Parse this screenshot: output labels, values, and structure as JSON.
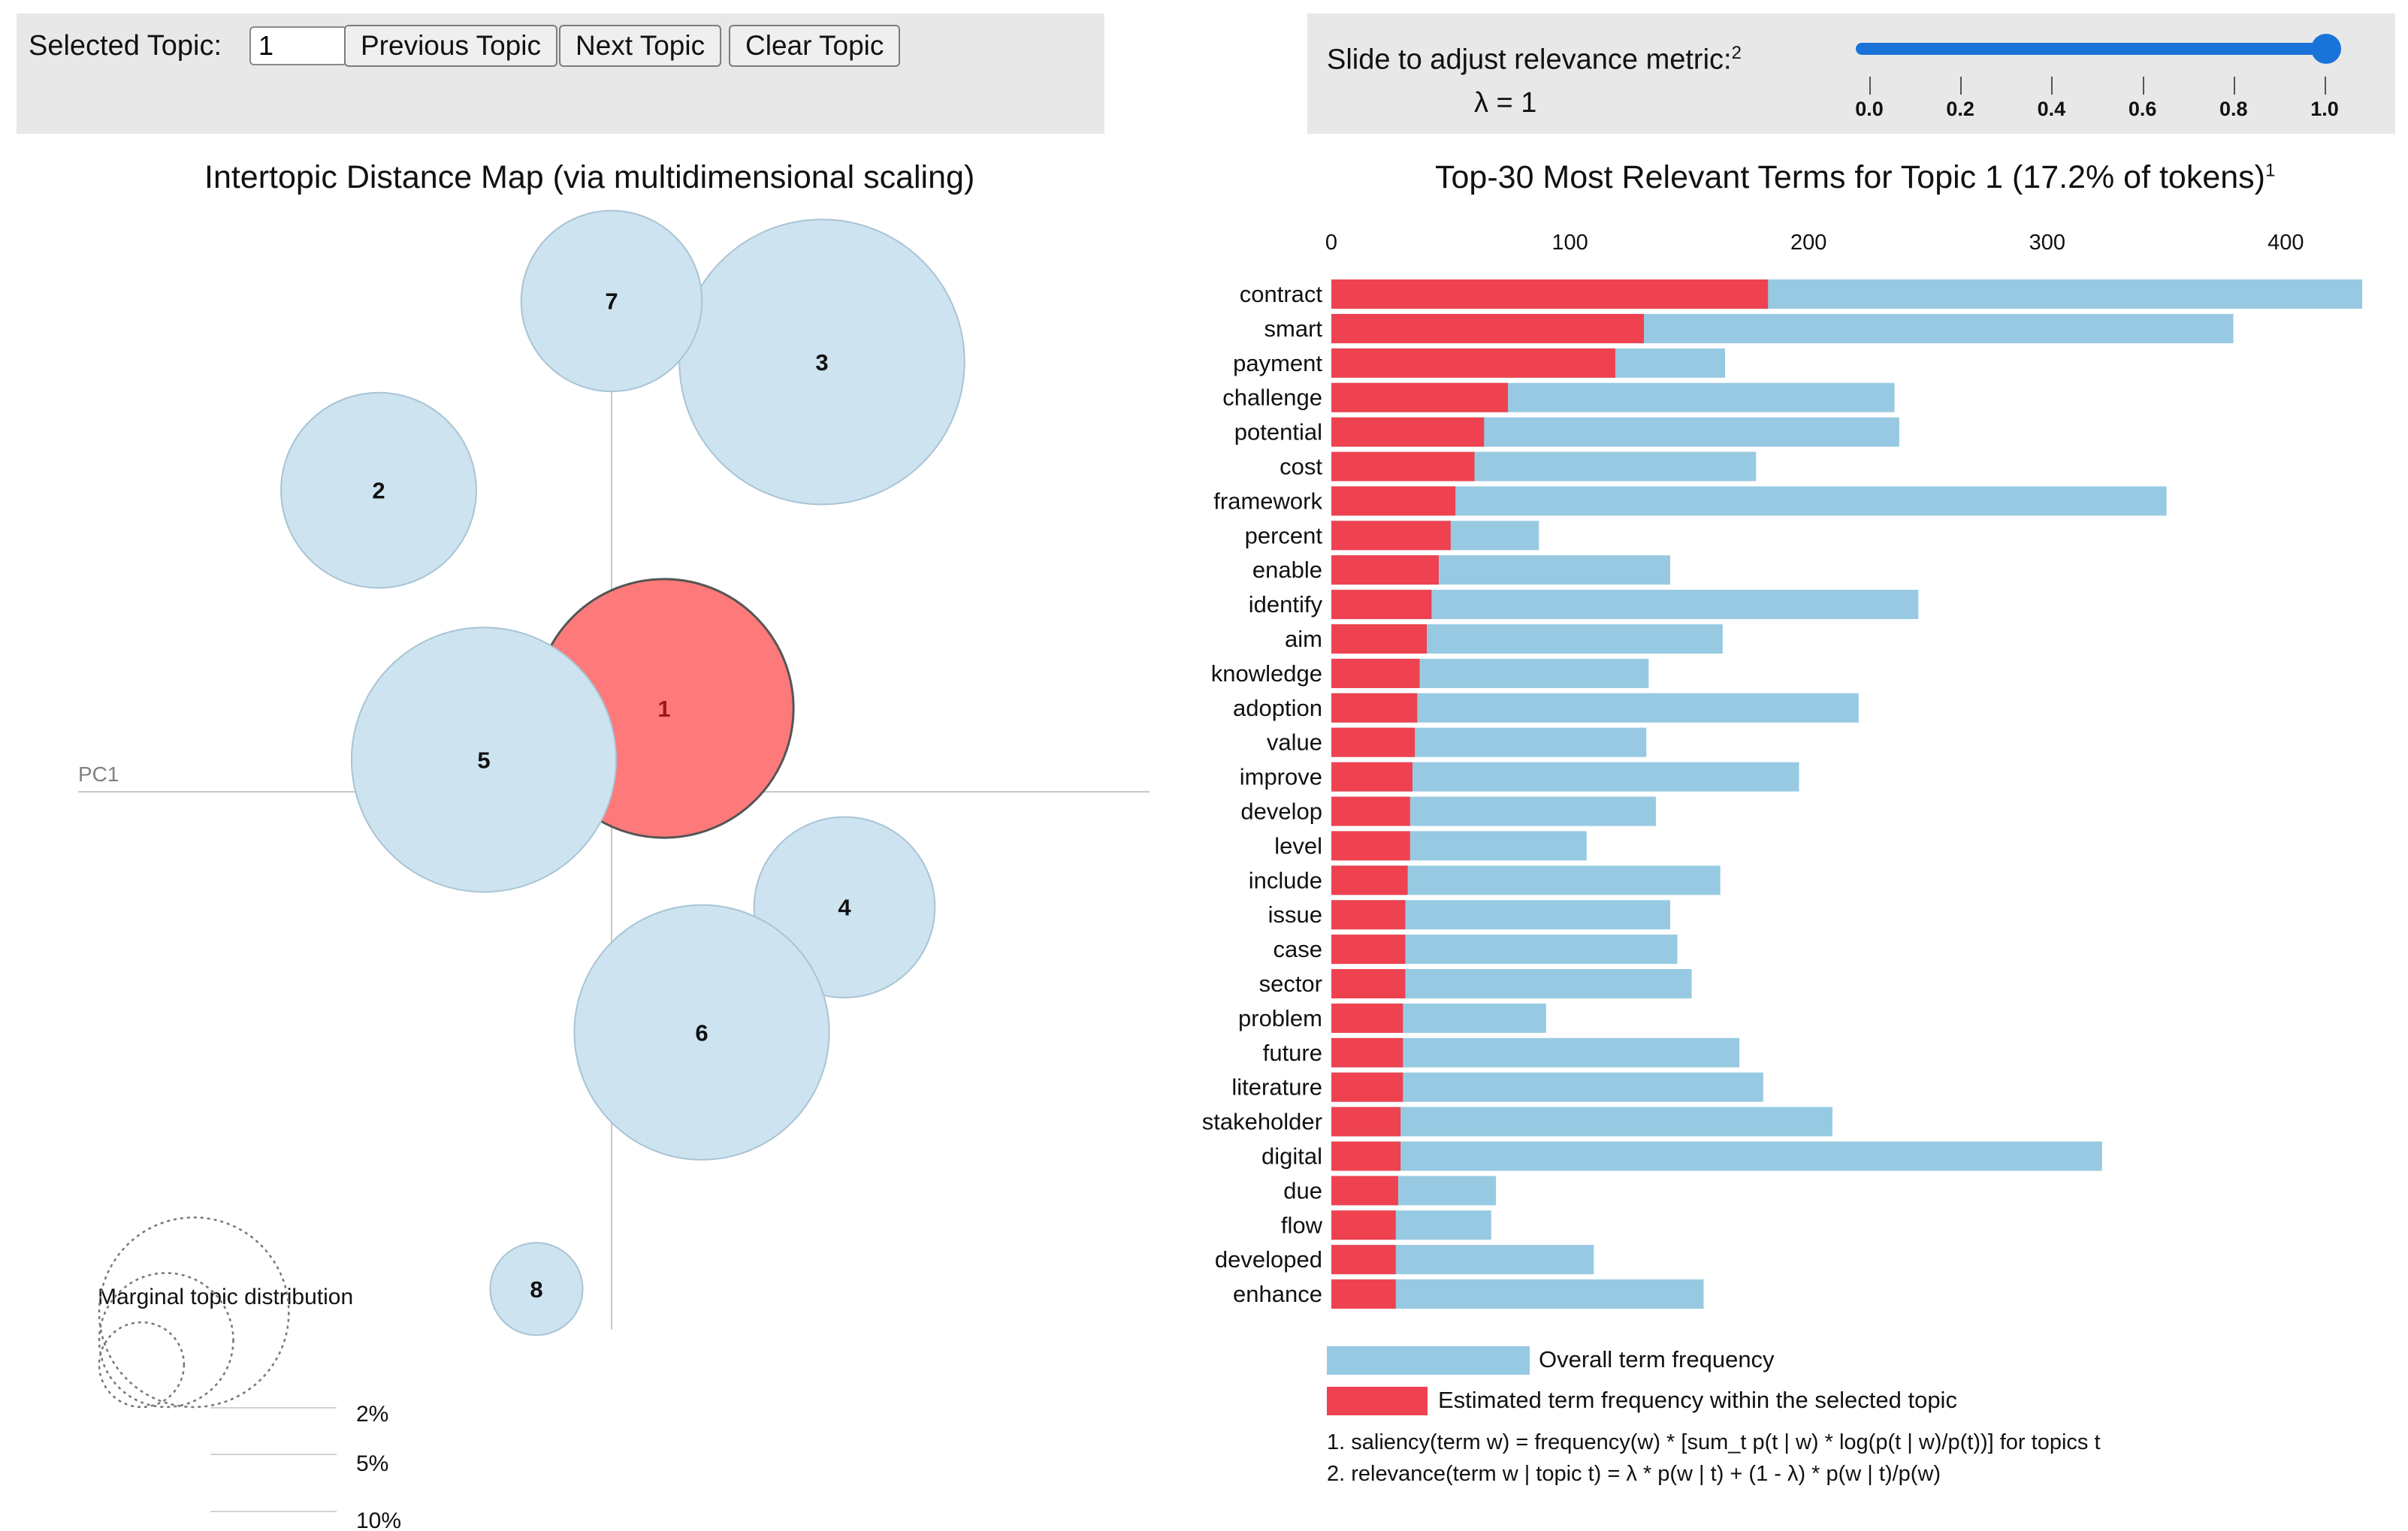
{
  "controls": {
    "selected_topic_label": "Selected Topic:",
    "selected_topic_value": "1",
    "previous_label": "Previous Topic",
    "next_label": "Next Topic",
    "clear_label": "Clear Topic",
    "slider_label": "Slide to adjust relevance metric:",
    "slider_footnote_mark": "2",
    "lambda_text": "λ = 1",
    "slider_value": 1.0,
    "slider_ticks": [
      "0.0",
      "0.2",
      "0.4",
      "0.6",
      "0.8",
      "1.0"
    ]
  },
  "colors": {
    "topic_fill": "#cde3f0",
    "selected_topic_fill": "#fe7a7a",
    "overall_bar": "#97cae2",
    "topic_bar": "#ee4250",
    "slider": "#1a73d8"
  },
  "chart_data": [
    {
      "type": "scatter",
      "title": "Intertopic Distance Map (via multidimensional scaling)",
      "xlabel": "PC1",
      "ylabel": "PC2",
      "selected_topic": "1",
      "topics": [
        {
          "label": "1",
          "x": 0.07,
          "y": 0.26,
          "size": 17.2
        },
        {
          "label": "2",
          "x": -0.31,
          "y": 0.94,
          "size": 9.8
        },
        {
          "label": "3",
          "x": 0.28,
          "y": 1.34,
          "size": 20.9
        },
        {
          "label": "4",
          "x": 0.31,
          "y": -0.36,
          "size": 8.4
        },
        {
          "label": "5",
          "x": -0.17,
          "y": 0.1,
          "size": 18.0
        },
        {
          "label": "6",
          "x": 0.12,
          "y": -0.75,
          "size": 16.7
        },
        {
          "label": "7",
          "x": 0.0,
          "y": 1.53,
          "size": 8.4
        },
        {
          "label": "8",
          "x": -0.1,
          "y": -1.55,
          "size": 2.2
        }
      ],
      "marginal_legend": {
        "title": "Marginal topic distribution",
        "labels": [
          "2%",
          "5%",
          "10%"
        ],
        "values": [
          2,
          5,
          10
        ]
      }
    },
    {
      "type": "bar",
      "title": "Top-30 Most Relevant Terms for Topic 1 (17.2% of tokens)",
      "title_footnote_mark": "1",
      "orientation": "horizontal",
      "xlim": [
        0,
        432
      ],
      "xticks": [
        0,
        100,
        200,
        300,
        400
      ],
      "categories": [
        "contract",
        "smart",
        "payment",
        "challenge",
        "potential",
        "cost",
        "framework",
        "percent",
        "enable",
        "identify",
        "aim",
        "knowledge",
        "adoption",
        "value",
        "improve",
        "develop",
        "level",
        "include",
        "issue",
        "case",
        "sector",
        "problem",
        "future",
        "literature",
        "stakeholder",
        "digital",
        "due",
        "flow",
        "developed",
        "enhance"
      ],
      "series": [
        {
          "name": "Overall term frequency",
          "values": [
            432,
            378,
            165,
            236,
            238,
            178,
            350,
            87,
            142,
            246,
            164,
            133,
            221,
            132,
            196,
            136,
            107,
            163,
            142,
            145,
            151,
            90,
            171,
            181,
            210,
            323,
            69,
            67,
            110,
            156
          ]
        },
        {
          "name": "Estimated term frequency within the selected topic",
          "values": [
            183,
            131,
            119,
            74,
            64,
            60,
            52,
            50,
            45,
            42,
            40,
            37,
            36,
            35,
            34,
            33,
            33,
            32,
            31,
            31,
            31,
            30,
            30,
            30,
            29,
            29,
            28,
            27,
            27,
            27
          ]
        }
      ]
    }
  ],
  "footnotes": [
    "1. saliency(term w) = frequency(w) * [sum_t p(t | w) * log(p(t | w)/p(t))] for topics t",
    "2. relevance(term w | topic t) = λ * p(w | t) + (1 - λ) * p(w | t)/p(w)"
  ]
}
